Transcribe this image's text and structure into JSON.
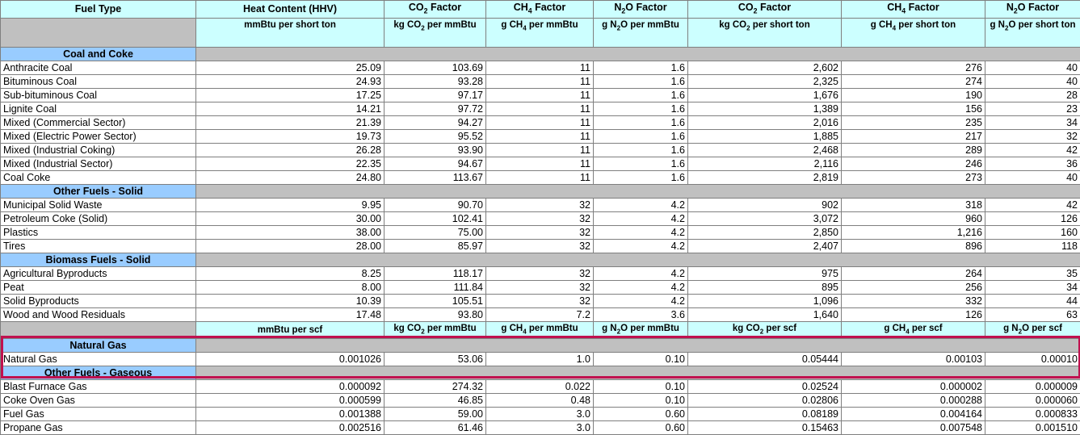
{
  "headers": {
    "h1": [
      "Fuel Type",
      "Heat Content (HHV)",
      "CO2 Factor",
      "CH4 Factor",
      "N2O Factor",
      "CO2 Factor",
      "CH4 Factor",
      "N2O Factor"
    ],
    "units": [
      "",
      "mmBtu per short ton",
      "kg CO2 per mmBtu",
      "g CH4 per mmBtu",
      "g N2O per mmBtu",
      "kg CO2 per short ton",
      "g CH4 per short ton",
      "g N2O per short ton"
    ]
  },
  "sections": [
    {
      "title": "Coal and Coke",
      "rows": [
        [
          "Anthracite Coal",
          "25.09",
          "103.69",
          "11",
          "1.6",
          "2,602",
          "276",
          "40"
        ],
        [
          "Bituminous Coal",
          "24.93",
          "93.28",
          "11",
          "1.6",
          "2,325",
          "274",
          "40"
        ],
        [
          "Sub-bituminous Coal",
          "17.25",
          "97.17",
          "11",
          "1.6",
          "1,676",
          "190",
          "28"
        ],
        [
          "Lignite Coal",
          "14.21",
          "97.72",
          "11",
          "1.6",
          "1,389",
          "156",
          "23"
        ],
        [
          "Mixed (Commercial Sector)",
          "21.39",
          "94.27",
          "11",
          "1.6",
          "2,016",
          "235",
          "34"
        ],
        [
          "Mixed (Electric Power Sector)",
          "19.73",
          "95.52",
          "11",
          "1.6",
          "1,885",
          "217",
          "32"
        ],
        [
          "Mixed (Industrial Coking)",
          "26.28",
          "93.90",
          "11",
          "1.6",
          "2,468",
          "289",
          "42"
        ],
        [
          "Mixed (Industrial Sector)",
          "22.35",
          "94.67",
          "11",
          "1.6",
          "2,116",
          "246",
          "36"
        ],
        [
          "Coal Coke",
          "24.80",
          "113.67",
          "11",
          "1.6",
          "2,819",
          "273",
          "40"
        ]
      ]
    },
    {
      "title": "Other Fuels - Solid",
      "rows": [
        [
          "Municipal Solid Waste",
          "9.95",
          "90.70",
          "32",
          "4.2",
          "902",
          "318",
          "42"
        ],
        [
          "Petroleum Coke (Solid)",
          "30.00",
          "102.41",
          "32",
          "4.2",
          "3,072",
          "960",
          "126"
        ],
        [
          "Plastics",
          "38.00",
          "75.00",
          "32",
          "4.2",
          "2,850",
          "1,216",
          "160"
        ],
        [
          "Tires",
          "28.00",
          "85.97",
          "32",
          "4.2",
          "2,407",
          "896",
          "118"
        ]
      ]
    },
    {
      "title": "Biomass Fuels - Solid",
      "rows": [
        [
          "Agricultural Byproducts",
          "8.25",
          "118.17",
          "32",
          "4.2",
          "975",
          "264",
          "35"
        ],
        [
          "Peat",
          "8.00",
          "111.84",
          "32",
          "4.2",
          "895",
          "256",
          "34"
        ],
        [
          "Solid Byproducts",
          "10.39",
          "105.51",
          "32",
          "4.2",
          "1,096",
          "332",
          "44"
        ],
        [
          "Wood and Wood Residuals",
          "17.48",
          "93.80",
          "7.2",
          "3.6",
          "1,640",
          "126",
          "63"
        ]
      ]
    }
  ],
  "units2": [
    "",
    "mmBtu per scf",
    "kg CO2 per mmBtu",
    "g CH4 per mmBtu",
    "g N2O per mmBtu",
    "kg CO2 per scf",
    "g CH4 per scf",
    "g N2O per scf"
  ],
  "gas_sections": [
    {
      "title": "Natural Gas",
      "rows": [
        [
          "Natural Gas",
          "0.001026",
          "53.06",
          "1.0",
          "0.10",
          "0.05444",
          "0.00103",
          "0.00010"
        ]
      ]
    },
    {
      "title": "Other Fuels - Gaseous",
      "rows": [
        [
          "Blast Furnace Gas",
          "0.000092",
          "274.32",
          "0.022",
          "0.10",
          "0.02524",
          "0.000002",
          "0.000009"
        ],
        [
          "Coke Oven Gas",
          "0.000599",
          "46.85",
          "0.48",
          "0.10",
          "0.02806",
          "0.000288",
          "0.000060"
        ],
        [
          "Fuel Gas",
          "0.001388",
          "59.00",
          "3.0",
          "0.60",
          "0.08189",
          "0.004164",
          "0.000833"
        ],
        [
          "Propane Gas",
          "0.002516",
          "61.46",
          "3.0",
          "0.60",
          "0.15463",
          "0.007548",
          "0.001510"
        ]
      ]
    }
  ]
}
